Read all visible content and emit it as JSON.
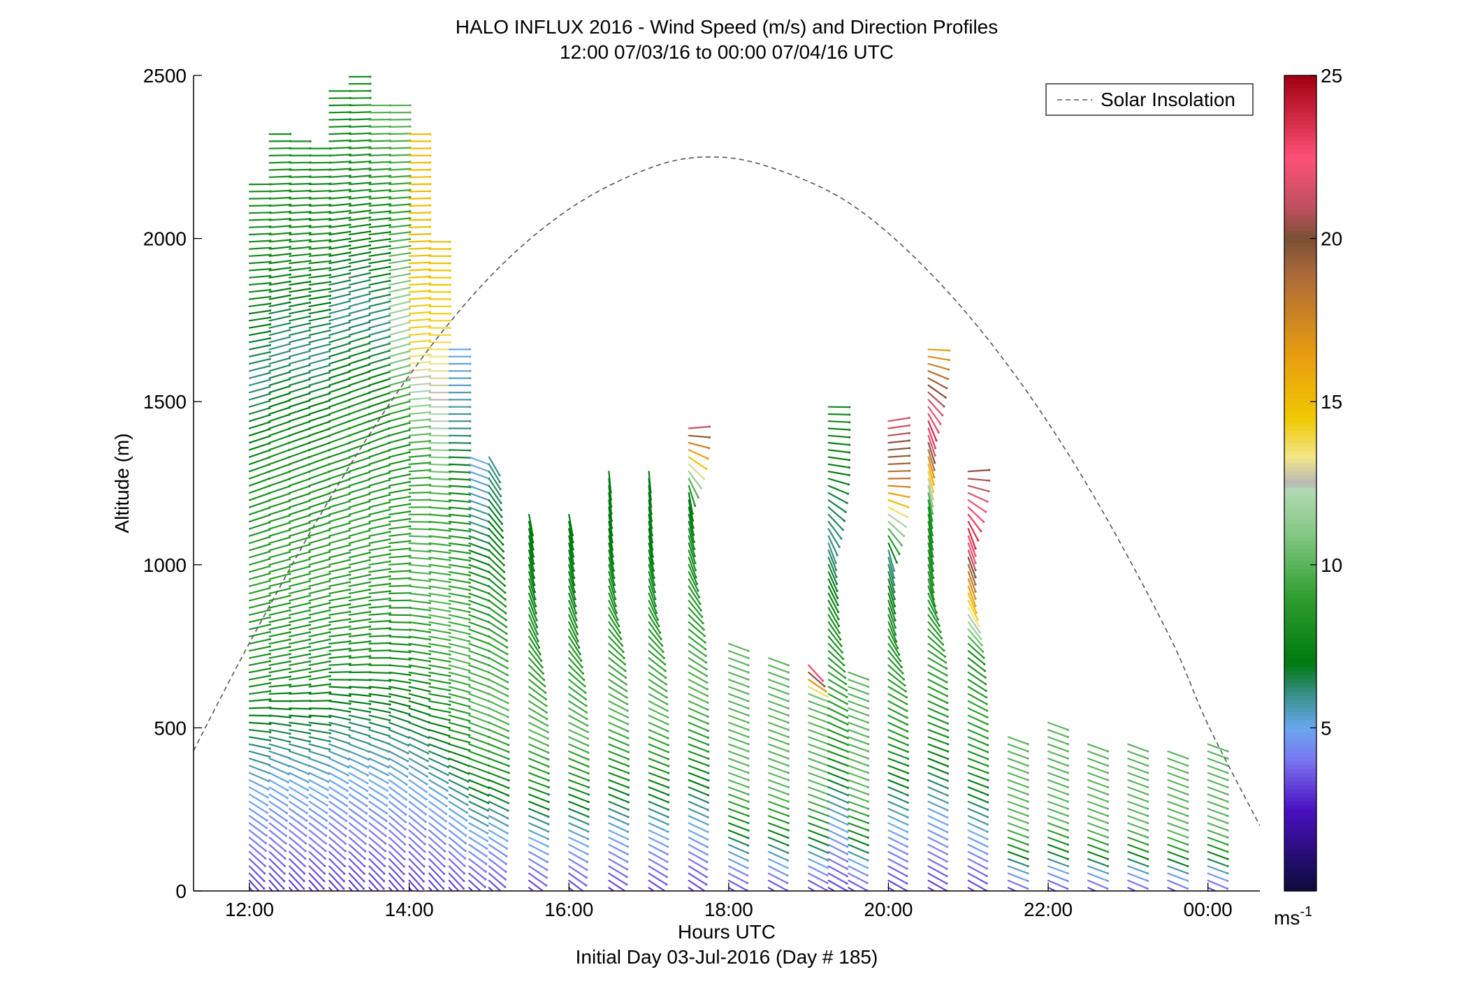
{
  "chart_data": {
    "type": "scatter",
    "title_line1": "HALO INFLUX 2016 - Wind Speed (m/s) and Direction Profiles",
    "title_line2": "12:00 07/03/16 to 00:00 07/04/16  UTC",
    "xlabel": "Hours UTC",
    "xlabel2": "Initial Day 03-Jul-2016 (Day # 185)",
    "ylabel": "Altitude (m)",
    "xlim": [
      11.3,
      24.65
    ],
    "ylim": [
      0,
      2500
    ],
    "x_ticks": [
      {
        "value": 12,
        "label": "12:00"
      },
      {
        "value": 14,
        "label": "14:00"
      },
      {
        "value": 16,
        "label": "16:00"
      },
      {
        "value": 18,
        "label": "18:00"
      },
      {
        "value": 20,
        "label": "20:00"
      },
      {
        "value": 22,
        "label": "22:00"
      },
      {
        "value": 24,
        "label": "00:00"
      }
    ],
    "y_ticks": [
      {
        "value": 0,
        "label": "0"
      },
      {
        "value": 500,
        "label": "500"
      },
      {
        "value": 1000,
        "label": "1000"
      },
      {
        "value": 1500,
        "label": "1500"
      },
      {
        "value": 2000,
        "label": "2000"
      },
      {
        "value": 2500,
        "label": "2500"
      }
    ],
    "legend": {
      "placement": "top-right",
      "entries": [
        "Solar Insolation"
      ]
    },
    "colorbar": {
      "unit": "ms",
      "unit_exp": "-1",
      "range": [
        0,
        25
      ],
      "ticks": [
        {
          "value": 5,
          "label": "5"
        },
        {
          "value": 10,
          "label": "10"
        },
        {
          "value": 15,
          "label": "15"
        },
        {
          "value": 20,
          "label": "20"
        },
        {
          "value": 25,
          "label": "25"
        }
      ],
      "stops": [
        {
          "v": 0,
          "color": "#0b0b3a"
        },
        {
          "v": 2.5,
          "color": "#4a10c0"
        },
        {
          "v": 4,
          "color": "#7a74f0"
        },
        {
          "v": 5,
          "color": "#6aa8ee"
        },
        {
          "v": 6,
          "color": "#3a8f8c"
        },
        {
          "v": 7,
          "color": "#007a10"
        },
        {
          "v": 9,
          "color": "#2e9e2e"
        },
        {
          "v": 11,
          "color": "#86c886"
        },
        {
          "v": 12.3,
          "color": "#b2d9b2"
        },
        {
          "v": 12.5,
          "color": "#b8b8b8"
        },
        {
          "v": 13.3,
          "color": "#f2e68a"
        },
        {
          "v": 14.5,
          "color": "#f0c800"
        },
        {
          "v": 16.5,
          "color": "#e89b10"
        },
        {
          "v": 19,
          "color": "#a8683a"
        },
        {
          "v": 20,
          "color": "#7a5034"
        },
        {
          "v": 21,
          "color": "#c05060"
        },
        {
          "v": 22.5,
          "color": "#ff5078"
        },
        {
          "v": 25,
          "color": "#a00010"
        }
      ]
    },
    "solar_insolation": {
      "style": "dashed",
      "color": "#555555",
      "peak_time": 17.75,
      "peak_altitude": 2250,
      "curve": [
        {
          "x": 11.3,
          "y": 430
        },
        {
          "x": 12.0,
          "y": 760
        },
        {
          "x": 13.0,
          "y": 1200
        },
        {
          "x": 14.0,
          "y": 1580
        },
        {
          "x": 15.0,
          "y": 1880
        },
        {
          "x": 16.0,
          "y": 2090
        },
        {
          "x": 17.0,
          "y": 2215
        },
        {
          "x": 17.75,
          "y": 2250
        },
        {
          "x": 18.5,
          "y": 2220
        },
        {
          "x": 19.5,
          "y": 2110
        },
        {
          "x": 20.5,
          "y": 1900
        },
        {
          "x": 21.5,
          "y": 1610
        },
        {
          "x": 22.5,
          "y": 1240
        },
        {
          "x": 23.5,
          "y": 790
        },
        {
          "x": 24.0,
          "y": 510
        },
        {
          "x": 24.65,
          "y": 200
        }
      ]
    },
    "profiles": [
      {
        "t": 12.0,
        "top": 2180,
        "sp": [
          3,
          5,
          8,
          9,
          8,
          6,
          8,
          8
        ],
        "dir": [
          140,
          120,
          80,
          75,
          70,
          75,
          85,
          90
        ]
      },
      {
        "t": 12.25,
        "top": 2330,
        "sp": [
          3,
          5,
          8,
          9,
          8,
          6,
          8,
          8
        ],
        "dir": [
          140,
          120,
          80,
          75,
          70,
          75,
          85,
          90
        ]
      },
      {
        "t": 12.5,
        "top": 2300,
        "sp": [
          3,
          5,
          8,
          9,
          8,
          6,
          8,
          8
        ],
        "dir": [
          140,
          120,
          80,
          75,
          70,
          75,
          85,
          90
        ]
      },
      {
        "t": 12.75,
        "top": 2280,
        "sp": [
          3,
          5,
          8,
          9,
          8,
          6,
          8,
          8
        ],
        "dir": [
          140,
          120,
          80,
          75,
          70,
          75,
          85,
          90
        ]
      },
      {
        "t": 13.0,
        "top": 2470,
        "sp": [
          3,
          5,
          8,
          9,
          8,
          6,
          8,
          8
        ],
        "dir": [
          140,
          120,
          85,
          75,
          70,
          75,
          85,
          90
        ]
      },
      {
        "t": 13.25,
        "top": 2500,
        "sp": [
          3,
          5,
          8,
          9,
          8,
          6,
          8,
          8
        ],
        "dir": [
          140,
          120,
          85,
          75,
          70,
          75,
          85,
          90
        ]
      },
      {
        "t": 13.5,
        "top": 2420,
        "sp": [
          3,
          5,
          8,
          9,
          8,
          6,
          8,
          10
        ],
        "dir": [
          140,
          120,
          90,
          80,
          70,
          75,
          85,
          90
        ]
      },
      {
        "t": 13.75,
        "top": 2420,
        "sp": [
          3,
          5,
          8,
          9,
          8,
          12,
          9,
          10
        ],
        "dir": [
          140,
          125,
          95,
          85,
          75,
          75,
          85,
          90
        ]
      },
      {
        "t": 14.0,
        "top": 2320,
        "sp": [
          3,
          5,
          8,
          10,
          9,
          14,
          15,
          15
        ],
        "dir": [
          140,
          125,
          100,
          95,
          85,
          85,
          88,
          90
        ]
      },
      {
        "t": 14.25,
        "top": 2000,
        "sp": [
          3,
          5,
          8,
          10,
          9,
          12,
          14,
          15
        ],
        "dir": [
          140,
          125,
          100,
          100,
          95,
          90,
          90,
          90
        ]
      },
      {
        "t": 14.5,
        "top": 1660,
        "sp": [
          3,
          5,
          8,
          10,
          9,
          8,
          6,
          5
        ],
        "dir": [
          140,
          125,
          105,
          105,
          100,
          95,
          90,
          90
        ]
      },
      {
        "t": 14.75,
        "top": 1330,
        "sp": [
          3,
          5,
          8,
          10,
          9,
          8,
          6,
          5
        ],
        "dir": [
          135,
          120,
          110,
          110,
          110,
          110,
          110,
          110
        ]
      },
      {
        "t": 15.0,
        "top": 1330,
        "sp": [
          3,
          5,
          8,
          10,
          9,
          8,
          7,
          6
        ],
        "dir": [
          135,
          120,
          110,
          115,
          120,
          130,
          140,
          150
        ]
      },
      {
        "t": 15.5,
        "top": 1160,
        "sp": [
          3,
          5,
          8,
          10,
          9,
          8,
          7,
          7
        ],
        "dir": [
          130,
          115,
          110,
          115,
          130,
          155,
          165,
          170
        ]
      },
      {
        "t": 16.0,
        "top": 1160,
        "sp": [
          3,
          5,
          8,
          10,
          9,
          8,
          7,
          7
        ],
        "dir": [
          130,
          115,
          110,
          115,
          130,
          155,
          165,
          170
        ]
      },
      {
        "t": 16.5,
        "top": 1290,
        "sp": [
          3,
          5,
          8,
          10,
          9,
          8,
          7,
          7
        ],
        "dir": [
          125,
          115,
          110,
          115,
          130,
          160,
          170,
          175
        ]
      },
      {
        "t": 17.0,
        "top": 1290,
        "sp": [
          3,
          5,
          8,
          10,
          9,
          8,
          7,
          7
        ],
        "dir": [
          125,
          115,
          110,
          115,
          130,
          160,
          170,
          175
        ]
      },
      {
        "t": 17.5,
        "top": 1430,
        "sp": [
          3,
          5,
          8,
          10,
          9,
          8,
          7,
          22
        ],
        "dir": [
          125,
          115,
          110,
          115,
          130,
          160,
          170,
          80
        ]
      },
      {
        "t": 18.0,
        "top": 770,
        "sp": [
          3,
          5,
          8,
          10,
          10,
          10,
          10,
          10
        ],
        "dir": [
          120,
          115,
          110,
          110,
          110,
          110,
          110,
          110
        ]
      },
      {
        "t": 18.5,
        "top": 720,
        "sp": [
          3,
          5,
          8,
          10,
          10,
          10,
          10,
          10
        ],
        "dir": [
          120,
          115,
          110,
          110,
          110,
          110,
          110,
          110
        ]
      },
      {
        "t": 19.0,
        "top": 700,
        "sp": [
          3,
          5,
          8,
          10,
          10,
          10,
          10,
          24
        ],
        "dir": [
          120,
          115,
          110,
          110,
          110,
          110,
          110,
          140
        ]
      },
      {
        "t": 19.25,
        "top": 1500,
        "sp": [
          3,
          5,
          8,
          9,
          8,
          6,
          7,
          8
        ],
        "dir": [
          120,
          115,
          110,
          120,
          150,
          160,
          100,
          90
        ]
      },
      {
        "t": 19.5,
        "top": 680,
        "sp": [
          3,
          5,
          8,
          10,
          10,
          10,
          10,
          10
        ],
        "dir": [
          120,
          115,
          110,
          110,
          110,
          110,
          110,
          110
        ]
      },
      {
        "t": 20.0,
        "top": 1460,
        "sp": [
          3,
          5,
          8,
          9,
          8,
          6,
          18,
          22
        ],
        "dir": [
          120,
          115,
          110,
          120,
          160,
          165,
          90,
          80
        ]
      },
      {
        "t": 20.5,
        "top": 1670,
        "sp": [
          3,
          5,
          8,
          9,
          8,
          8,
          24,
          16
        ],
        "dir": [
          120,
          115,
          110,
          120,
          165,
          170,
          160,
          90
        ]
      },
      {
        "t": 21.0,
        "top": 1300,
        "sp": [
          3,
          5,
          8,
          9,
          8,
          16,
          24,
          20
        ],
        "dir": [
          120,
          115,
          110,
          115,
          130,
          160,
          160,
          80
        ]
      },
      {
        "t": 21.5,
        "top": 480,
        "sp": [
          3,
          5,
          8,
          10,
          10,
          10,
          10,
          10
        ],
        "dir": [
          115,
          110,
          110,
          110,
          110,
          110,
          110,
          110
        ]
      },
      {
        "t": 22.0,
        "top": 530,
        "sp": [
          3,
          5,
          8,
          10,
          10,
          10,
          10,
          10
        ],
        "dir": [
          115,
          110,
          110,
          110,
          110,
          110,
          110,
          110
        ]
      },
      {
        "t": 22.5,
        "top": 460,
        "sp": [
          3,
          5,
          8,
          10,
          10,
          10,
          10,
          10
        ],
        "dir": [
          115,
          110,
          110,
          110,
          110,
          110,
          110,
          110
        ]
      },
      {
        "t": 23.0,
        "top": 470,
        "sp": [
          3,
          5,
          8,
          10,
          10,
          10,
          10,
          10
        ],
        "dir": [
          115,
          110,
          110,
          110,
          110,
          110,
          110,
          110
        ]
      },
      {
        "t": 23.5,
        "top": 430,
        "sp": [
          3,
          5,
          8,
          10,
          10,
          10,
          10,
          10
        ],
        "dir": [
          115,
          110,
          110,
          110,
          110,
          110,
          110,
          110
        ]
      },
      {
        "t": 24.0,
        "top": 460,
        "sp": [
          3,
          5,
          8,
          10,
          10,
          10,
          10,
          10
        ],
        "dir": [
          115,
          110,
          110,
          110,
          110,
          110,
          110,
          110
        ]
      }
    ]
  }
}
